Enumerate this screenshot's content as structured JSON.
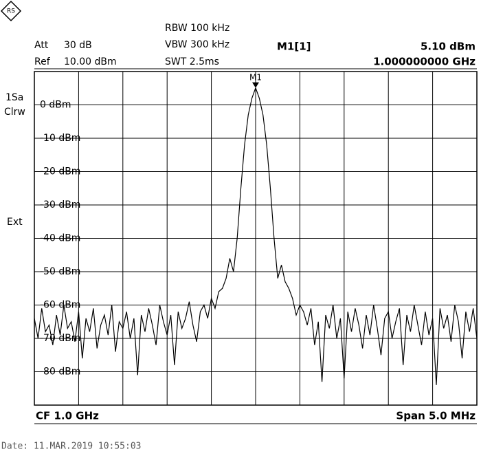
{
  "chart_data": {
    "type": "line",
    "settings": {
      "att_label": "Att",
      "att": "30 dB",
      "ref_label": "Ref",
      "ref": "10.00 dBm",
      "rbw": "RBW 100 kHz",
      "vbw": "VBW 300 kHz",
      "swt": "SWT 2.5ms",
      "trace_mode": "1Sa",
      "trace_detector": "Clrw",
      "trigger": "Ext",
      "center": "CF 1.0 GHz",
      "span": "Span 5.0 MHz"
    },
    "marker": {
      "name": "M1",
      "readout": "M1[1]",
      "value": 5.1,
      "value_label": "5.10 dBm",
      "frequency_label": "1.000000000 GHz"
    },
    "date": "Date: 11.MAR.2019  10:55:03",
    "ylim": [
      -90,
      10
    ],
    "yticks": [
      {
        "value": 0,
        "label": "0 dBm"
      },
      {
        "value": -10,
        "label": "-10 dBm"
      },
      {
        "value": -20,
        "label": "-20 dBm"
      },
      {
        "value": -30,
        "label": "-30 dBm"
      },
      {
        "value": -40,
        "label": "-40 dBm"
      },
      {
        "value": -50,
        "label": "-50 dBm"
      },
      {
        "value": -60,
        "label": "-60 dBm"
      },
      {
        "value": -70,
        "label": "-70 dBm"
      },
      {
        "value": -80,
        "label": "-80 dBm"
      }
    ],
    "grid": true,
    "color": "#000000",
    "values": [
      -64,
      -70,
      -61,
      -68,
      -66,
      -72,
      -63,
      -69,
      -60,
      -67,
      -65,
      -71,
      -62,
      -76,
      -64,
      -68,
      -61,
      -73,
      -66,
      -63,
      -69,
      -60,
      -74,
      -65,
      -67,
      -62,
      -70,
      -64,
      -81,
      -63,
      -68,
      -61,
      -66,
      -72,
      -60,
      -65,
      -69,
      -63,
      -78,
      -62,
      -67,
      -64,
      -59,
      -66,
      -71,
      -62,
      -60,
      -64,
      -58,
      -61,
      -56,
      -55,
      -52,
      -46,
      -50,
      -40,
      -25,
      -12,
      -3,
      2,
      5.1,
      2,
      -3,
      -12,
      -25,
      -40,
      -52,
      -48,
      -53,
      -55,
      -58,
      -63,
      -60,
      -62,
      -66,
      -61,
      -72,
      -65,
      -83,
      -63,
      -67,
      -60,
      -70,
      -64,
      -82,
      -62,
      -68,
      -61,
      -66,
      -73,
      -63,
      -69,
      -60,
      -67,
      -75,
      -64,
      -62,
      -70,
      -65,
      -61,
      -78,
      -63,
      -68,
      -60,
      -66,
      -72,
      -62,
      -69,
      -64,
      -84,
      -61,
      -67,
      -63,
      -71,
      -60,
      -65,
      -76,
      -62,
      -68,
      -61,
      -70
    ]
  }
}
